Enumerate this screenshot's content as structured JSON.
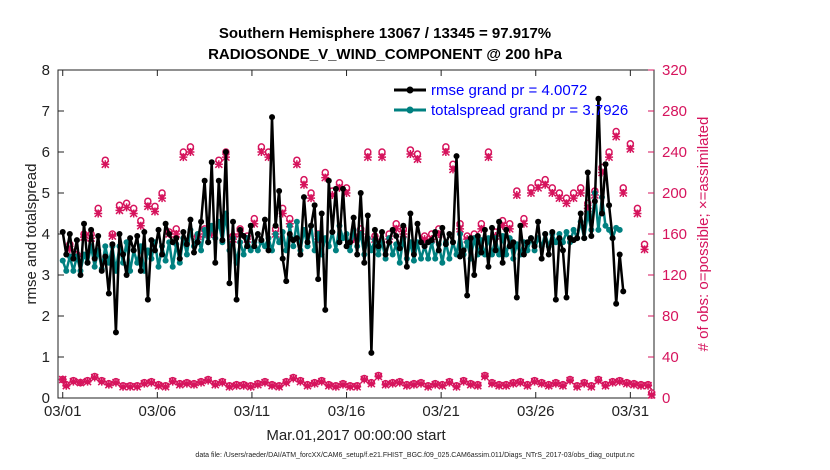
{
  "chart_data": {
    "type": "line",
    "title_line1": "Southern Hemisphere 13067 / 13345 = 97.917%",
    "title_line2": "RADIOSONDE_V_WIND_COMPONENT @ 200 hPa",
    "ylabel": "rmse and totalspread",
    "y2label": "# of obs: o=possible; ×=assimilated",
    "xlabel": "Mar.01,2017 00:00:00 start",
    "footnote": "data file: /Users/raeder/DAI/ATM_forcXX/CAM6_setup/f.e21.FHIST_BGC.f09_025.CAM6assim.011/Diags_NTrS_2017-03/obs_diag_output.nc",
    "xlim": [
      0.75,
      32.25
    ],
    "ylim": [
      0,
      8
    ],
    "y2lim": [
      0,
      320
    ],
    "xticks": [
      {
        "value": 1,
        "label": "03/01"
      },
      {
        "value": 6,
        "label": "03/06"
      },
      {
        "value": 11,
        "label": "03/11"
      },
      {
        "value": 16,
        "label": "03/16"
      },
      {
        "value": 21,
        "label": "03/21"
      },
      {
        "value": 26,
        "label": "03/26"
      },
      {
        "value": 31,
        "label": "03/31"
      }
    ],
    "yticks": [
      "0",
      "1",
      "2",
      "3",
      "4",
      "5",
      "6",
      "7",
      "8"
    ],
    "y2ticks": [
      "0",
      "40",
      "80",
      "120",
      "160",
      "200",
      "240",
      "280",
      "320"
    ],
    "series": [
      {
        "name": "rmse grand pr = 4.0072",
        "color": "#000000",
        "values": [
          4.05,
          3.5,
          4.0,
          3.4,
          3.85,
          3.0,
          4.25,
          3.3,
          4.1,
          3.4,
          3.95,
          3.1,
          3.45,
          2.55,
          3.75,
          1.6,
          4.0,
          3.5,
          3.0,
          3.9,
          3.6,
          3.95,
          3.1,
          4.05,
          2.4,
          3.85,
          3.6,
          4.1,
          3.5,
          4.25,
          4.0,
          3.8,
          3.9,
          3.4,
          4.05,
          3.75,
          4.35,
          3.55,
          3.8,
          4.3,
          5.3,
          3.8,
          5.75,
          3.3,
          5.3,
          3.85,
          6.0,
          2.8,
          4.3,
          2.4,
          4.1,
          3.95,
          3.7,
          4.2,
          3.7,
          4.0,
          3.85,
          4.35,
          3.6,
          6.85,
          4.2,
          5.05,
          3.4,
          2.85,
          4.0,
          3.85,
          3.9,
          3.5,
          4.9,
          3.8,
          4.2,
          4.7,
          2.9,
          4.5,
          2.15,
          5.3,
          4.05,
          5.1,
          3.8,
          5.1,
          3.7,
          3.8,
          4.4,
          3.5,
          5.0,
          3.3,
          4.45,
          1.1,
          4.1,
          3.7,
          4.05,
          3.5,
          3.8,
          4.1,
          3.95,
          3.65,
          4.2,
          3.2,
          4.5,
          3.5,
          4.25,
          3.8,
          3.7,
          3.8,
          3.85,
          4.05,
          3.6,
          4.15,
          3.75,
          4.0,
          3.8,
          5.9,
          3.45,
          3.6,
          2.5,
          3.9,
          3.0,
          3.95,
          3.55,
          4.1,
          3.2,
          4.15,
          3.6,
          4.3,
          3.3,
          4.1,
          3.7,
          3.8,
          2.45,
          4.2,
          3.5,
          3.8,
          3.9,
          3.7,
          4.3,
          3.4,
          4.0,
          3.5,
          4.05,
          2.4,
          3.9,
          3.6,
          2.45,
          3.9,
          3.85,
          3.9,
          4.5,
          3.9,
          5.5,
          3.95,
          4.8,
          7.3,
          4.5,
          5.7,
          4.7,
          3.9,
          2.3,
          3.5,
          2.6
        ]
      },
      {
        "name": "totalspread grand pr = 3.7926",
        "color": "#008080",
        "values": [
          3.35,
          3.1,
          3.45,
          3.1,
          3.45,
          3.1,
          3.5,
          3.3,
          3.7,
          3.2,
          3.6,
          3.15,
          3.7,
          3.3,
          3.7,
          3.1,
          3.7,
          3.3,
          3.8,
          3.1,
          3.6,
          3.3,
          3.7,
          3.1,
          3.6,
          3.4,
          3.8,
          3.2,
          3.7,
          3.35,
          3.8,
          3.2,
          3.75,
          3.3,
          3.9,
          3.5,
          4.1,
          3.7,
          4.0,
          3.6,
          4.1,
          3.8,
          4.2,
          3.9,
          4.3,
          3.8,
          4.5,
          3.6,
          3.9,
          3.3,
          3.8,
          3.5,
          3.9,
          3.6,
          3.8,
          3.6,
          3.8,
          3.7,
          3.9,
          3.6,
          4.0,
          3.8,
          4.05,
          3.6,
          4.2,
          3.7,
          4.3,
          3.6,
          4.1,
          3.7,
          4.2,
          3.6,
          4.0,
          3.5,
          3.9,
          3.7,
          4.05,
          3.6,
          4.2,
          3.9,
          4.0,
          3.6,
          4.1,
          3.7,
          4.0,
          3.5,
          3.9,
          3.6,
          3.85,
          3.5,
          3.8,
          3.4,
          3.9,
          3.5,
          3.75,
          3.3,
          3.9,
          3.4,
          3.8,
          3.35,
          3.8,
          3.4,
          3.7,
          3.4,
          3.8,
          3.4,
          3.75,
          3.3,
          3.8,
          3.4,
          3.8,
          3.5,
          4.0,
          3.5,
          3.8,
          3.4,
          3.9,
          3.5,
          3.85,
          3.5,
          3.9,
          3.5,
          3.9,
          3.5,
          3.95,
          3.5,
          3.9,
          3.4,
          3.75,
          3.5,
          3.8,
          3.6,
          3.9,
          3.6,
          3.9,
          3.7,
          4.0,
          3.7,
          4.0,
          3.8,
          4.0,
          3.8,
          4.05,
          3.8,
          4.1,
          3.9,
          4.3,
          3.9,
          4.5,
          4.1,
          5.0,
          4.1,
          4.9,
          4.2,
          4.1,
          3.9,
          4.15,
          4.1
        ]
      }
    ],
    "obs_series": [
      {
        "name": "possible",
        "marker": "o",
        "color": "#d6145d",
        "values": [
          18,
          13,
          150,
          17,
          140,
          15,
          160,
          17,
          160,
          21,
          185,
          17,
          232,
          14,
          160,
          16,
          188,
          12,
          190,
          12,
          185,
          12,
          173,
          15,
          192,
          16,
          187,
          13,
          200,
          12,
          162,
          17,
          165,
          14,
          240,
          15,
          245,
          14,
          158,
          16,
          165,
          18,
          162,
          14,
          232,
          16,
          240,
          12,
          158,
          13,
          165,
          13,
          158,
          12,
          175,
          14,
          245,
          16,
          240,
          13,
          165,
          12,
          185,
          16,
          175,
          20,
          232,
          17,
          213,
          13,
          200,
          15,
          160,
          17,
          220,
          13,
          202,
          12,
          210,
          14,
          205,
          12,
          158,
          12,
          165,
          19,
          240,
          15,
          158,
          22,
          240,
          14,
          160,
          15,
          170,
          16,
          165,
          13,
          242,
          14,
          238,
          15,
          158,
          12,
          160,
          14,
          165,
          13,
          245,
          16,
          228,
          12,
          170,
          17,
          158,
          14,
          160,
          13,
          170,
          22,
          240,
          15,
          162,
          13,
          173,
          13,
          170,
          15,
          202,
          16,
          175,
          13,
          205,
          17,
          210,
          15,
          213,
          13,
          205,
          15,
          200,
          13,
          195,
          18,
          200,
          12,
          205,
          15,
          190,
          12,
          202,
          18,
          225,
          13,
          240,
          16,
          260,
          17,
          205,
          15,
          248,
          14,
          185,
          13,
          150,
          13,
          5
        ]
      },
      {
        "name": "assimilated",
        "marker": "x",
        "color": "#d6145d",
        "values": [
          18,
          12,
          145,
          16,
          138,
          15,
          157,
          16,
          156,
          20,
          180,
          16,
          228,
          13,
          158,
          15,
          183,
          11,
          186,
          11,
          180,
          11,
          168,
          14,
          187,
          15,
          182,
          12,
          195,
          11,
          160,
          16,
          160,
          13,
          235,
          14,
          240,
          13,
          155,
          15,
          160,
          17,
          160,
          13,
          228,
          15,
          235,
          11,
          155,
          12,
          160,
          12,
          155,
          11,
          170,
          13,
          240,
          15,
          235,
          12,
          160,
          11,
          180,
          15,
          170,
          19,
          228,
          16,
          208,
          12,
          195,
          14,
          155,
          16,
          215,
          12,
          198,
          11,
          205,
          13,
          200,
          11,
          155,
          11,
          160,
          18,
          235,
          14,
          155,
          21,
          235,
          13,
          155,
          14,
          165,
          15,
          160,
          12,
          238,
          13,
          233,
          14,
          155,
          11,
          155,
          13,
          160,
          12,
          240,
          15,
          223,
          11,
          165,
          16,
          155,
          13,
          155,
          12,
          165,
          21,
          235,
          14,
          158,
          12,
          168,
          12,
          165,
          14,
          198,
          15,
          170,
          12,
          200,
          16,
          205,
          14,
          208,
          12,
          200,
          14,
          195,
          12,
          190,
          17,
          195,
          11,
          200,
          14,
          185,
          11,
          198,
          17,
          220,
          12,
          235,
          15,
          255,
          16,
          200,
          14,
          243,
          13,
          180,
          12,
          145,
          12,
          3
        ]
      }
    ],
    "x_start": 1,
    "x_step": 0.1875
  }
}
